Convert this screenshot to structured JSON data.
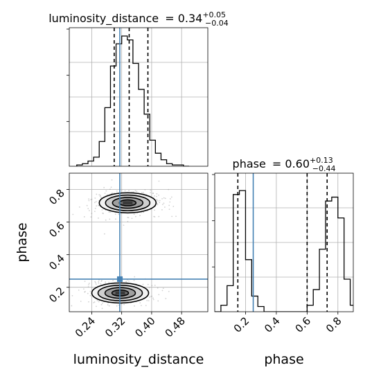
{
  "chart_data": [
    {
      "type": "histogram",
      "panel": "luminosity_distance marginal",
      "title": {
        "param": "luminosity_distance",
        "median": "0.34",
        "plus": "+0.05",
        "minus": "−0.04"
      },
      "x_range": [
        0.18,
        0.55
      ],
      "bin_edges": [
        0.2,
        0.215,
        0.23,
        0.245,
        0.26,
        0.275,
        0.29,
        0.305,
        0.32,
        0.335,
        0.35,
        0.365,
        0.38,
        0.395,
        0.41,
        0.425,
        0.44,
        0.455,
        0.47,
        0.485,
        0.5
      ],
      "counts": [
        0.01,
        0.02,
        0.04,
        0.07,
        0.19,
        0.45,
        0.77,
        0.94,
        1.0,
        0.97,
        0.79,
        0.59,
        0.4,
        0.2,
        0.1,
        0.05,
        0.02,
        0.01,
        0.01,
        0.0
      ],
      "quantiles": [
        0.3,
        0.34,
        0.39
      ],
      "truth": 0.315,
      "grid": true
    },
    {
      "type": "heatmap",
      "panel": "luminosity_distance vs phase 2D",
      "x_range": [
        0.18,
        0.55
      ],
      "y_range": [
        0.05,
        0.9
      ],
      "xticks": [
        "0.24",
        "0.32",
        "0.40",
        "0.48"
      ],
      "yticks": [
        "0.2",
        "0.4",
        "0.6",
        "0.8"
      ],
      "xlabel": "luminosity_distance",
      "ylabel": "phase",
      "clusters": [
        {
          "x": 0.336,
          "y": 0.718,
          "sx": 0.037,
          "sy": 0.03,
          "weight": 0.55
        },
        {
          "x": 0.316,
          "y": 0.165,
          "sx": 0.037,
          "sy": 0.03,
          "weight": 0.45
        }
      ],
      "contour_scales": [
        0.6,
        1.1,
        1.6,
        2.05
      ],
      "truth": {
        "x": 0.315,
        "y": 0.25
      },
      "grid": true
    },
    {
      "type": "histogram",
      "panel": "phase marginal",
      "title": {
        "param": "phase",
        "median": "0.60",
        "plus": "+0.13",
        "minus": "−0.44"
      },
      "x_range": [
        0.0,
        0.9
      ],
      "xticks": [
        "0.2",
        "0.4",
        "0.6",
        "0.8"
      ],
      "xlabel": "phase",
      "bin_edges": [
        0.0,
        0.04,
        0.08,
        0.12,
        0.16,
        0.2,
        0.24,
        0.28,
        0.32,
        0.36,
        0.4,
        0.44,
        0.48,
        0.52,
        0.56,
        0.6,
        0.64,
        0.68,
        0.72,
        0.76,
        0.8,
        0.84,
        0.88,
        0.92
      ],
      "counts": [
        0.0,
        0.05,
        0.2,
        0.9,
        0.93,
        0.4,
        0.12,
        0.04,
        0.0,
        0.0,
        0.0,
        0.0,
        0.0,
        0.0,
        0.0,
        0.05,
        0.17,
        0.48,
        0.85,
        0.88,
        0.72,
        0.25,
        0.05
      ],
      "quantiles": [
        0.15,
        0.6,
        0.73
      ],
      "truth": 0.25,
      "grid": true
    }
  ],
  "colors": {
    "truth": "#4682b4",
    "hist": "#000000",
    "grid": "#b0b0b0",
    "points": "#9a9a9a"
  }
}
